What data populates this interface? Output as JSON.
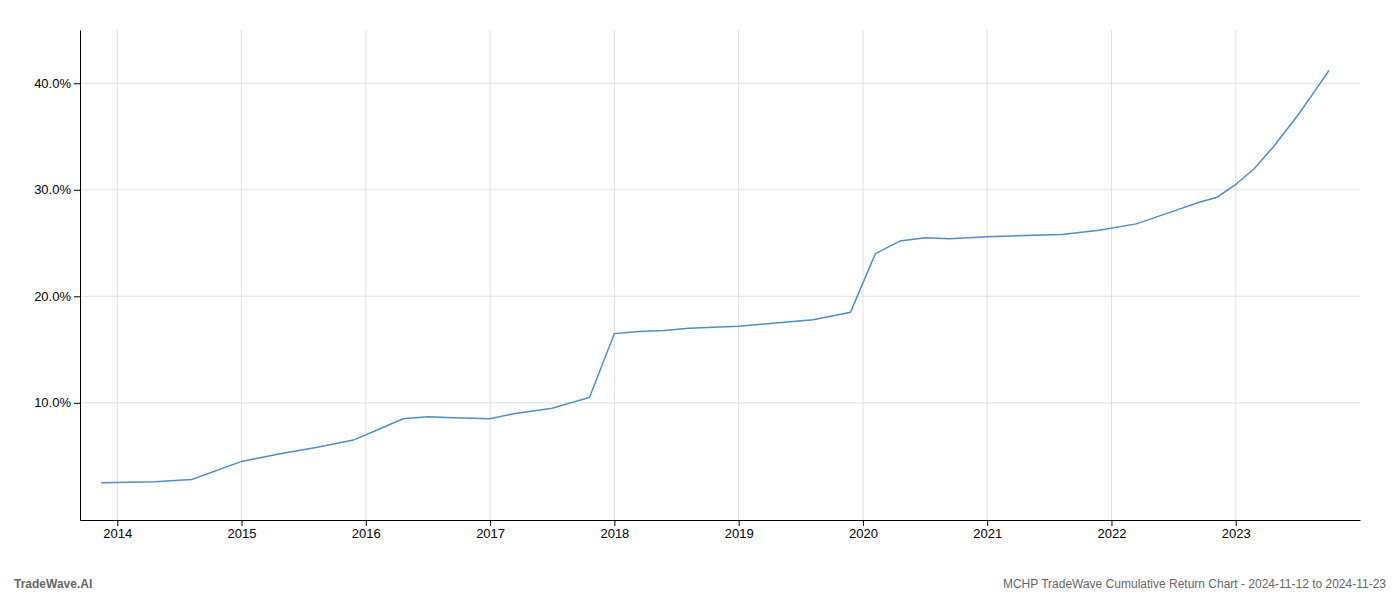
{
  "chart_data": {
    "type": "line",
    "x": [
      2013.87,
      2014.1,
      2014.3,
      2014.6,
      2015.0,
      2015.3,
      2015.6,
      2015.9,
      2016.1,
      2016.3,
      2016.5,
      2016.7,
      2017.0,
      2017.2,
      2017.5,
      2017.8,
      2018.0,
      2018.2,
      2018.4,
      2018.6,
      2018.8,
      2019.0,
      2019.3,
      2019.6,
      2019.9,
      2020.1,
      2020.3,
      2020.5,
      2020.7,
      2021.0,
      2021.3,
      2021.6,
      2021.9,
      2022.2,
      2022.5,
      2022.7,
      2022.85,
      2023.0,
      2023.15,
      2023.3,
      2023.5,
      2023.65,
      2023.75
    ],
    "values": [
      2.5,
      2.55,
      2.6,
      2.8,
      4.5,
      5.2,
      5.8,
      6.5,
      7.5,
      8.5,
      8.7,
      8.6,
      8.5,
      9.0,
      9.5,
      10.5,
      16.5,
      16.7,
      16.8,
      17.0,
      17.1,
      17.2,
      17.5,
      17.8,
      18.5,
      24.0,
      25.2,
      25.5,
      25.4,
      25.6,
      25.7,
      25.8,
      26.2,
      26.8,
      28.0,
      28.8,
      29.3,
      30.5,
      32.0,
      34.0,
      37.0,
      39.5,
      41.2
    ],
    "color": "#4a90c4",
    "xlim": [
      2013.7,
      2024.0
    ],
    "ylim": [
      -1,
      45
    ],
    "xticks": [
      2014,
      2015,
      2016,
      2017,
      2018,
      2019,
      2020,
      2021,
      2022,
      2023
    ],
    "yticks": [
      {
        "value": 10.0,
        "label": "10.0%"
      },
      {
        "value": 20.0,
        "label": "20.0%"
      },
      {
        "value": 30.0,
        "label": "30.0%"
      },
      {
        "value": 40.0,
        "label": "40.0%"
      }
    ],
    "grid": true,
    "annotations": [
      "TradeWave.AI",
      "MCHP TradeWave Cumulative Return Chart - 2024-11-12 to 2024-11-23"
    ]
  }
}
